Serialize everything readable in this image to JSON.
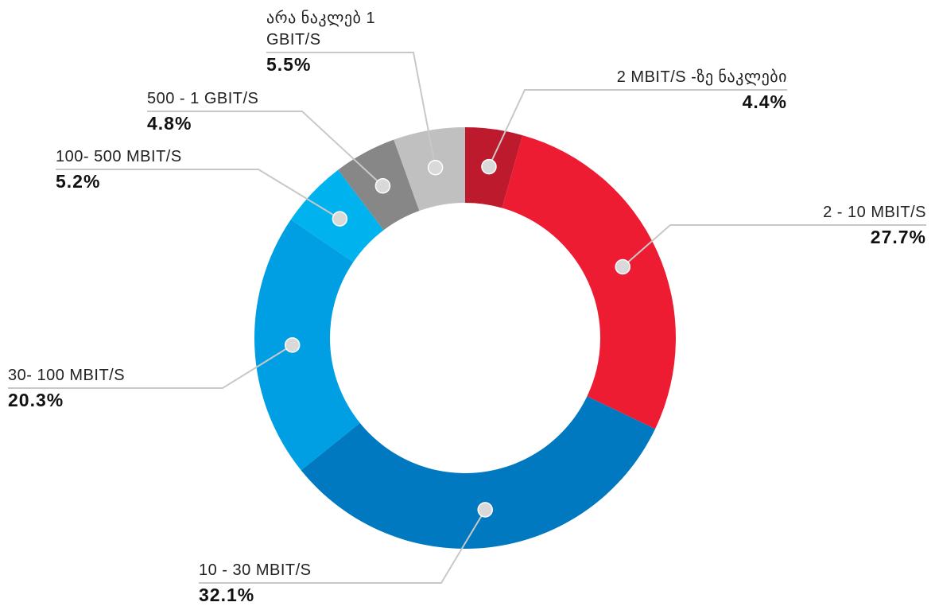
{
  "chart_data": {
    "type": "donut",
    "categories": [
      "2 MBIT/S -ზე ნაკლები",
      "2 - 10 MBIT/S",
      "10 - 30 MBIT/S",
      "30- 100 MBIT/S",
      "100- 500 MBIT/S",
      "500 - 1 GBIT/S",
      "არა ნაკლებ 1 GBIT/S"
    ],
    "values": [
      4.4,
      27.7,
      32.1,
      20.3,
      5.2,
      4.8,
      5.5
    ],
    "value_labels": [
      "4.4%",
      "27.7%",
      "32.1%",
      "20.3%",
      "5.2%",
      "4.8%",
      "5.5%"
    ],
    "colors": [
      "#be1a2e",
      "#ed1c33",
      "#0079c1",
      "#009fe3",
      "#00b3ef",
      "#878787",
      "#c0c0c0"
    ]
  }
}
